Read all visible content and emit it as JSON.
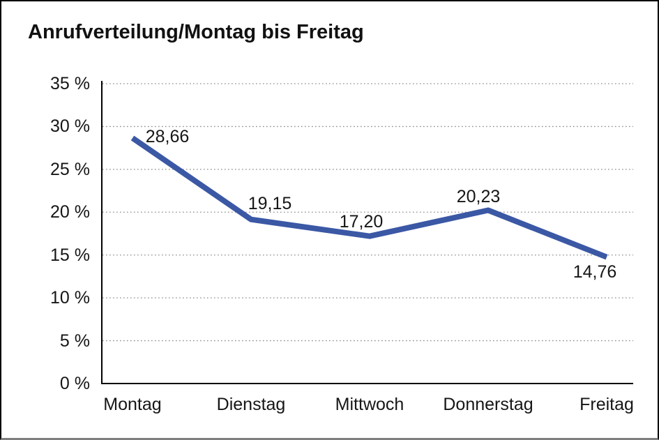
{
  "page": {
    "title": "Anrufverteilung/Montag bis Freitag"
  },
  "chart_data": {
    "type": "line",
    "title": "Anrufverteilung/Montag bis Freitag",
    "categories": [
      "Montag",
      "Dienstag",
      "Mittwoch",
      "Donnerstag",
      "Freitag"
    ],
    "series": [
      {
        "name": "Anrufverteilung",
        "values": [
          28.66,
          19.15,
          17.2,
          20.23,
          14.76
        ]
      }
    ],
    "value_labels": [
      "28,66",
      "19,15",
      "17,20",
      "20,23",
      "14,76"
    ],
    "ytick_labels": [
      "35 %",
      "30 %",
      "25 %",
      "20 %",
      "15 %",
      "10 %",
      "5 %",
      "0 %"
    ],
    "yticks": [
      35,
      30,
      25,
      20,
      15,
      10,
      5,
      0
    ],
    "ylim": [
      0,
      35
    ],
    "grid": "horizontal-dotted",
    "legend": "none",
    "line_color": "#3B58A5",
    "axis_color": "#000000",
    "gridline_color": "#8a8a8a",
    "text_color": "#161616"
  }
}
